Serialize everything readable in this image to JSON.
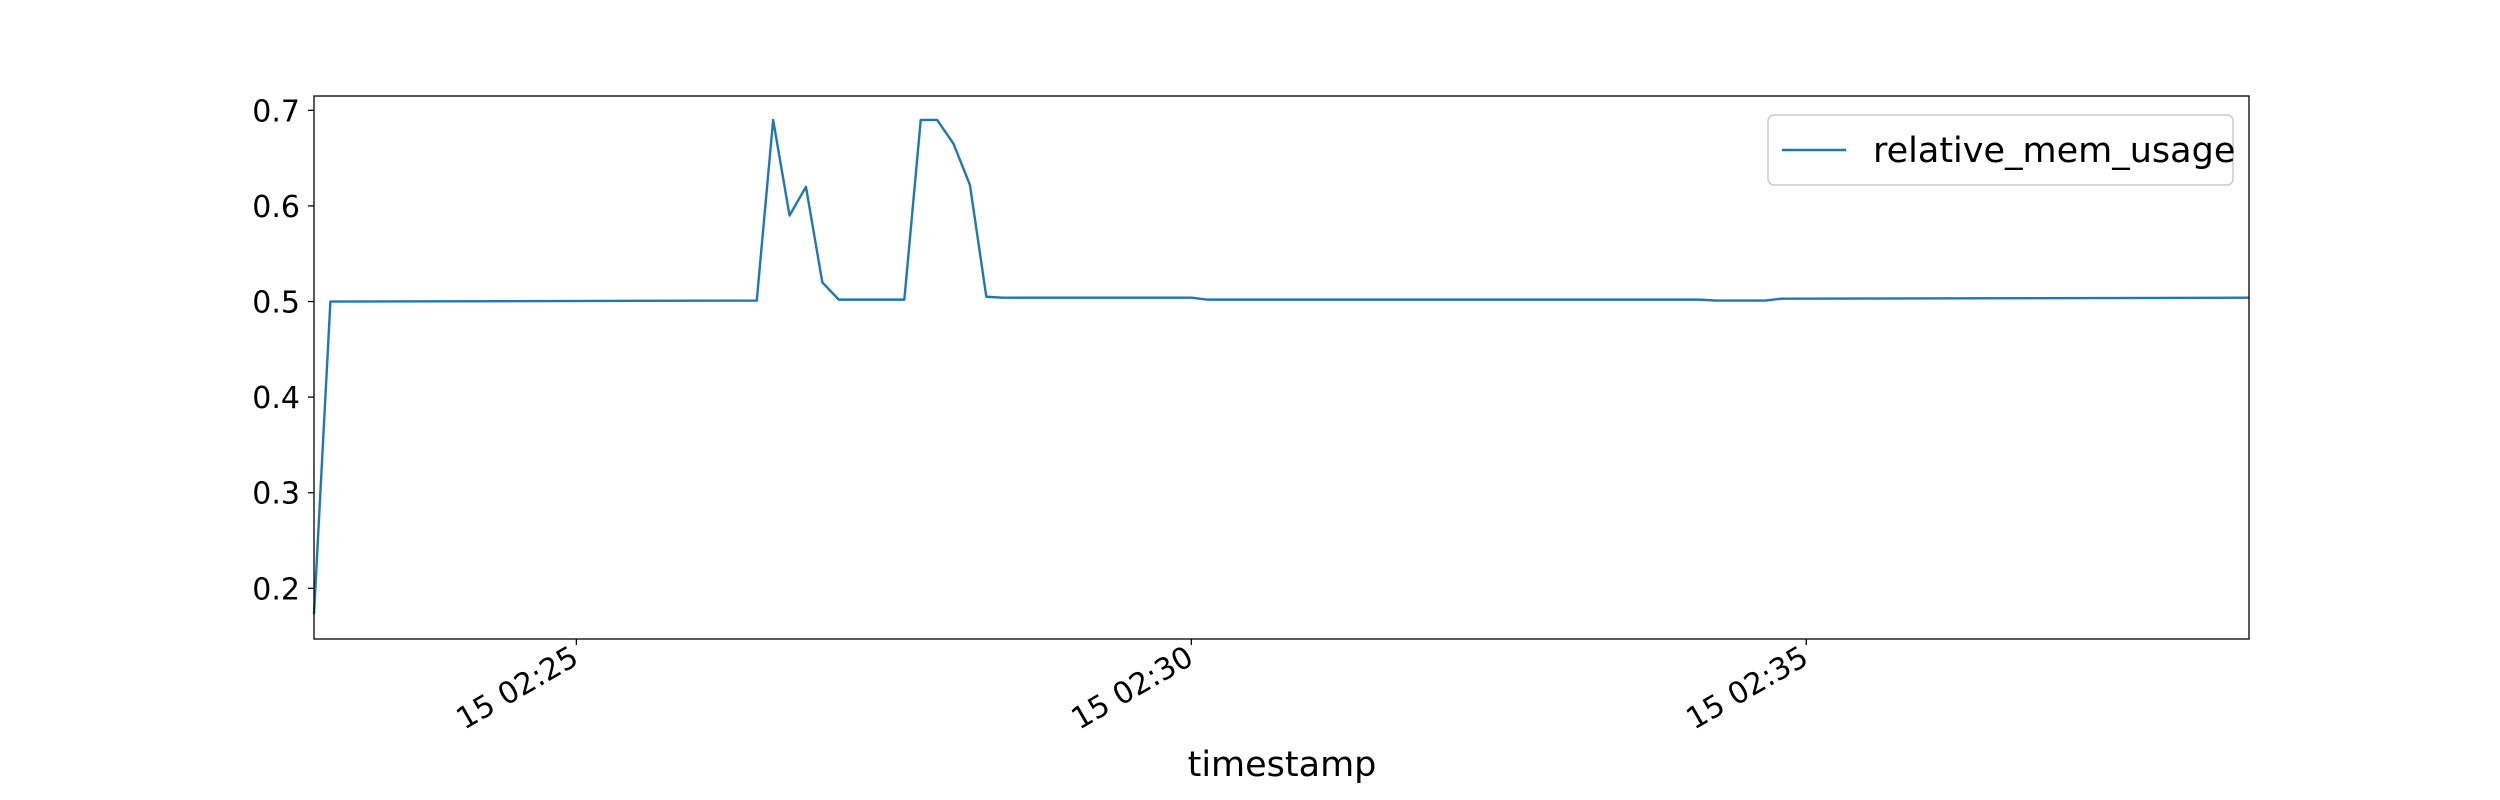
{
  "chart_data": {
    "type": "line",
    "xlabel": "timestamp",
    "x": [
      "15 02:22:52",
      "15 02:23:00",
      "15 02:26:28",
      "15 02:26:36",
      "15 02:26:44",
      "15 02:26:52",
      "15 02:27:00",
      "15 02:27:08",
      "15 02:27:40",
      "15 02:27:48",
      "15 02:27:56",
      "15 02:28:04",
      "15 02:28:12",
      "15 02:28:20",
      "15 02:28:28",
      "15 02:30:00",
      "15 02:30:08",
      "15 02:34:08",
      "15 02:34:16",
      "15 02:34:40",
      "15 02:34:48",
      "15 02:38:36"
    ],
    "series": [
      {
        "name": "relative_mem_usage",
        "color": "#1f77b4",
        "values": [
          0.173,
          0.5,
          0.501,
          0.69,
          0.59,
          0.62,
          0.52,
          0.502,
          0.502,
          0.69,
          0.69,
          0.665,
          0.622,
          0.505,
          0.504,
          0.504,
          0.502,
          0.502,
          0.501,
          0.501,
          0.503,
          0.504
        ]
      }
    ],
    "xlim": [
      "15 02:22:52",
      "15 02:38:36"
    ],
    "xticks": [
      {
        "value": "15 02:25:00",
        "label": "15 02:25"
      },
      {
        "value": "15 02:30:00",
        "label": "15 02:30"
      },
      {
        "value": "15 02:35:00",
        "label": "15 02:35"
      }
    ],
    "ylim": [
      0.147,
      0.715
    ],
    "yticks": [
      0.2,
      0.3,
      0.4,
      0.5,
      0.6,
      0.7
    ],
    "legend": "upper right"
  }
}
